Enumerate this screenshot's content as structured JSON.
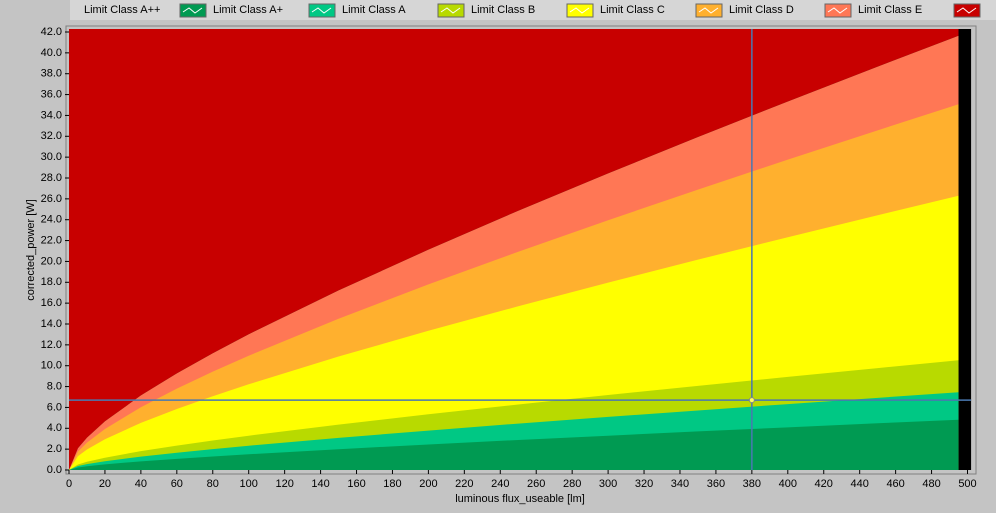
{
  "chart_data": {
    "type": "area",
    "x_label": "luminous flux_useable [lm]",
    "y_label": "corrected_power [W]",
    "x": [
      0,
      5,
      10,
      20,
      40,
      60,
      80,
      100,
      150,
      200,
      250,
      300,
      350,
      400,
      450,
      495
    ],
    "series": [
      {
        "name": "Limit Class A++",
        "color": "#009a52",
        "values": [
          0,
          0.24,
          0.36,
          0.54,
          0.83,
          1.07,
          1.3,
          1.51,
          1.99,
          2.45,
          2.88,
          3.29,
          3.7,
          4.09,
          4.48,
          4.82
        ]
      },
      {
        "name": "Limit Class A+",
        "color": "#00c884",
        "values": [
          0,
          0.38,
          0.56,
          0.84,
          1.28,
          1.66,
          2.0,
          2.33,
          3.08,
          3.78,
          4.45,
          5.09,
          5.71,
          6.32,
          6.92,
          7.45
        ]
      },
      {
        "name": "Limit Class A",
        "color": "#b8da00",
        "values": [
          0,
          0.53,
          0.79,
          1.18,
          1.81,
          2.34,
          2.83,
          3.29,
          4.35,
          5.34,
          6.28,
          7.19,
          8.07,
          8.93,
          9.77,
          10.52
        ]
      },
      {
        "name": "Limit Class B",
        "color": "#ffff00",
        "values": [
          0,
          1.33,
          1.96,
          2.95,
          4.52,
          5.85,
          7.07,
          8.22,
          10.88,
          13.35,
          15.7,
          17.97,
          20.17,
          22.32,
          24.43,
          26.3
        ]
      },
      {
        "name": "Limit Class C",
        "color": "#ffb02e",
        "values": [
          0,
          1.77,
          2.62,
          3.93,
          6.02,
          7.8,
          9.43,
          10.96,
          14.5,
          17.8,
          20.93,
          23.95,
          26.89,
          29.76,
          32.57,
          35.07
        ]
      },
      {
        "name": "Limit Class D",
        "color": "#ff7755",
        "values": [
          0,
          2.1,
          3.11,
          4.67,
          7.15,
          9.27,
          11.2,
          13.02,
          17.22,
          21.13,
          24.86,
          28.44,
          31.93,
          35.34,
          38.68,
          41.64
        ]
      },
      {
        "name": "Limit Class E",
        "color": "#c80000"
      }
    ],
    "cursor": {
      "x": 380,
      "y": 6.7,
      "color": "#4a78b0"
    },
    "xlim": [
      0,
      502
    ],
    "ylim": [
      0,
      42
    ],
    "xticks": [
      0,
      20,
      40,
      60,
      80,
      100,
      120,
      140,
      160,
      180,
      200,
      220,
      240,
      260,
      280,
      300,
      320,
      340,
      360,
      380,
      400,
      420,
      440,
      460,
      480,
      500
    ],
    "yticks": [
      {
        "value": 0,
        "label": "0.0"
      },
      {
        "value": 2,
        "label": "2.0"
      },
      {
        "value": 4,
        "label": "4.0"
      },
      {
        "value": 6,
        "label": "6.0"
      },
      {
        "value": 8,
        "label": "8.0"
      },
      {
        "value": 10,
        "label": "10.0"
      },
      {
        "value": 12,
        "label": "12.0"
      },
      {
        "value": 14,
        "label": "14.0"
      },
      {
        "value": 16,
        "label": "16.0"
      },
      {
        "value": 18,
        "label": "18.0"
      },
      {
        "value": 20,
        "label": "20.0"
      },
      {
        "value": 22,
        "label": "22.0"
      },
      {
        "value": 24,
        "label": "24.0"
      },
      {
        "value": 26,
        "label": "26.0"
      },
      {
        "value": 28,
        "label": "28.0"
      },
      {
        "value": 30,
        "label": "30.0"
      },
      {
        "value": 32,
        "label": "32.0"
      },
      {
        "value": 34,
        "label": "34.0"
      },
      {
        "value": 36,
        "label": "36.0"
      },
      {
        "value": 38,
        "label": "38.0"
      },
      {
        "value": 40,
        "label": "40.0"
      },
      {
        "value": 42,
        "label": "42.0"
      }
    ]
  }
}
